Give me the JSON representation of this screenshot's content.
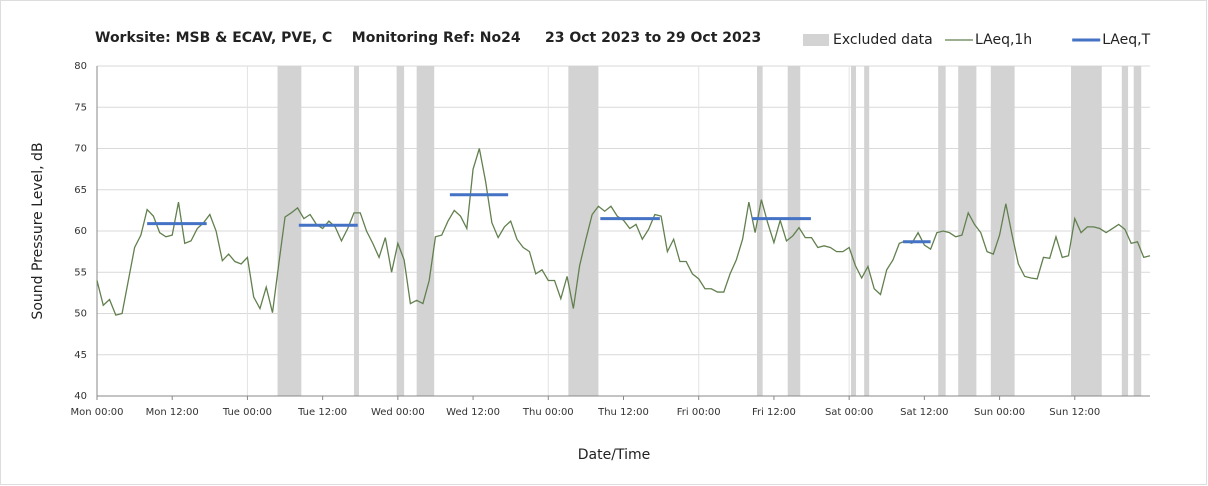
{
  "chart_data": {
    "type": "line",
    "title": "Worksite: MSB & ECAV, PVE, C    Monitoring Ref: No24     23 Oct 2023 to 29 Oct 2023",
    "xlabel": "Date/Time",
    "ylabel": "Sound Pressure Level, dB",
    "xlim": [
      0,
      168
    ],
    "ylim": [
      40,
      80
    ],
    "yticks": [
      40,
      45,
      50,
      55,
      60,
      65,
      70,
      75,
      80
    ],
    "xticks": [
      {
        "value": 0,
        "label": "Mon 00:00"
      },
      {
        "value": 12,
        "label": "Mon 12:00"
      },
      {
        "value": 24,
        "label": "Tue 00:00"
      },
      {
        "value": 36,
        "label": "Tue 12:00"
      },
      {
        "value": 48,
        "label": "Wed 00:00"
      },
      {
        "value": 60,
        "label": "Wed 12:00"
      },
      {
        "value": 72,
        "label": "Thu 00:00"
      },
      {
        "value": 84,
        "label": "Thu 12:00"
      },
      {
        "value": 96,
        "label": "Fri 00:00"
      },
      {
        "value": 108,
        "label": "Fri 12:00"
      },
      {
        "value": 120,
        "label": "Sat 00:00"
      },
      {
        "value": 132,
        "label": "Sat 12:00"
      },
      {
        "value": 144,
        "label": "Sun 00:00"
      },
      {
        "value": 156,
        "label": "Sun 12:00"
      }
    ],
    "grid": true,
    "legend": "top",
    "excluded": {
      "name": "Excluded data",
      "color": "#d3d3d3",
      "ranges": [
        [
          28.8,
          32.6
        ],
        [
          41,
          41.8
        ],
        [
          47.8,
          49
        ],
        [
          51,
          53.8
        ],
        [
          75.2,
          80
        ],
        [
          105.3,
          106.2
        ],
        [
          110.2,
          112.2
        ],
        [
          120.3,
          121.1
        ],
        [
          122.4,
          123.2
        ],
        [
          134.2,
          135.4
        ],
        [
          137.4,
          140.3
        ],
        [
          142.6,
          146.4
        ],
        [
          155.4,
          160.3
        ],
        [
          163.5,
          164.5
        ],
        [
          165.4,
          166.6
        ]
      ]
    },
    "series": [
      {
        "name": "LAeq,1h",
        "color": "#62804f",
        "x": [
          0,
          1,
          2,
          3,
          4,
          5,
          6,
          7,
          8,
          9,
          10,
          11,
          12,
          13,
          14,
          15,
          16,
          17,
          18,
          19,
          20,
          21,
          22,
          23,
          24,
          25,
          26,
          27,
          28,
          29,
          30,
          31,
          32,
          33,
          34,
          35,
          36,
          37,
          38,
          39,
          40,
          41,
          42,
          43,
          44,
          45,
          46,
          47,
          48,
          49,
          50,
          51,
          52,
          53,
          54,
          55,
          56,
          57,
          58,
          59,
          60,
          61,
          62,
          63,
          64,
          65,
          66,
          67,
          68,
          69,
          70,
          71,
          72,
          73,
          74,
          75,
          76,
          77,
          78,
          79,
          80,
          81,
          82,
          83,
          84,
          85,
          86,
          87,
          88,
          89,
          90,
          91,
          92,
          93,
          94,
          95,
          96,
          97,
          98,
          99,
          100,
          101,
          102,
          103,
          104,
          105,
          106,
          107,
          108,
          109,
          110,
          111,
          112,
          113,
          114,
          115,
          116,
          117,
          118,
          119,
          120,
          121,
          122,
          123,
          124,
          125,
          126,
          127,
          128,
          129,
          130,
          131,
          132,
          133,
          134,
          135,
          136,
          137,
          138,
          139,
          140,
          141,
          142,
          143,
          144,
          145,
          146,
          147,
          148,
          149,
          150,
          151,
          152,
          153,
          154,
          155,
          156,
          157,
          158,
          159,
          160,
          161,
          162,
          163,
          164,
          165,
          166,
          167,
          168
        ],
        "values": [
          54,
          51,
          51.7,
          49.8,
          50,
          54,
          58,
          59.5,
          62.6,
          61.8,
          59.8,
          59.3,
          59.5,
          63.5,
          58.5,
          58.8,
          60.3,
          61,
          62,
          60,
          56.4,
          57.2,
          56.3,
          56,
          56.8,
          52,
          50.6,
          53.2,
          50.1,
          56,
          61.7,
          62.2,
          62.8,
          61.5,
          62,
          60.8,
          60.3,
          61.2,
          60.5,
          58.8,
          60.3,
          62.2,
          62.2,
          60,
          58.5,
          56.8,
          59.2,
          55,
          58.5,
          56.5,
          51.2,
          51.6,
          51.2,
          54,
          59.3,
          59.5,
          61.2,
          62.5,
          61.8,
          60.3,
          67.5,
          70,
          66,
          61,
          59.2,
          60.5,
          61.2,
          59,
          58,
          57.5,
          54.8,
          55.3,
          54,
          54,
          51.8,
          54.5,
          50.6,
          55.8,
          59,
          62,
          63,
          62.4,
          63,
          61.8,
          61.3,
          60.3,
          60.8,
          59,
          60.2,
          62,
          61.8,
          57.5,
          59,
          56.3,
          56.3,
          54.8,
          54.2,
          53,
          53,
          52.6,
          52.6,
          54.8,
          56.5,
          59,
          63.5,
          59.8,
          63.8,
          61,
          58.6,
          61.3,
          58.8,
          59.4,
          60.4,
          59.2,
          59.2,
          58,
          58.2,
          58,
          57.5,
          57.5,
          58,
          55.8,
          54.3,
          55.7,
          53,
          52.3,
          55.3,
          56.5,
          58.5,
          58.8,
          58.5,
          59.8,
          58.3,
          57.8,
          59.8,
          60,
          59.8,
          59.3,
          59.5,
          62.2,
          60.8,
          59.8,
          57.5,
          57.2,
          59.5,
          63.3,
          59.5,
          56,
          54.5,
          54.3,
          54.2,
          56.8,
          56.7,
          59.3,
          56.8,
          57,
          61.5,
          59.8,
          60.5,
          60.5,
          60.3,
          59.8,
          60.3,
          60.8,
          60.2,
          58.5,
          58.7,
          56.8,
          57
        ]
      },
      {
        "name": "LAeq,T",
        "color": "#4472c4",
        "segments": [
          {
            "x": [
              8,
              17.5
            ],
            "value": 60.9
          },
          {
            "x": [
              32.2,
              41.6
            ],
            "value": 60.7
          },
          {
            "x": [
              56.3,
              65.6
            ],
            "value": 64.4
          },
          {
            "x": [
              80.3,
              89.8
            ],
            "value": 61.5
          },
          {
            "x": [
              104.5,
              113.9
            ],
            "value": 61.5
          },
          {
            "x": [
              128.6,
              133
            ],
            "value": 58.7
          }
        ]
      }
    ]
  }
}
